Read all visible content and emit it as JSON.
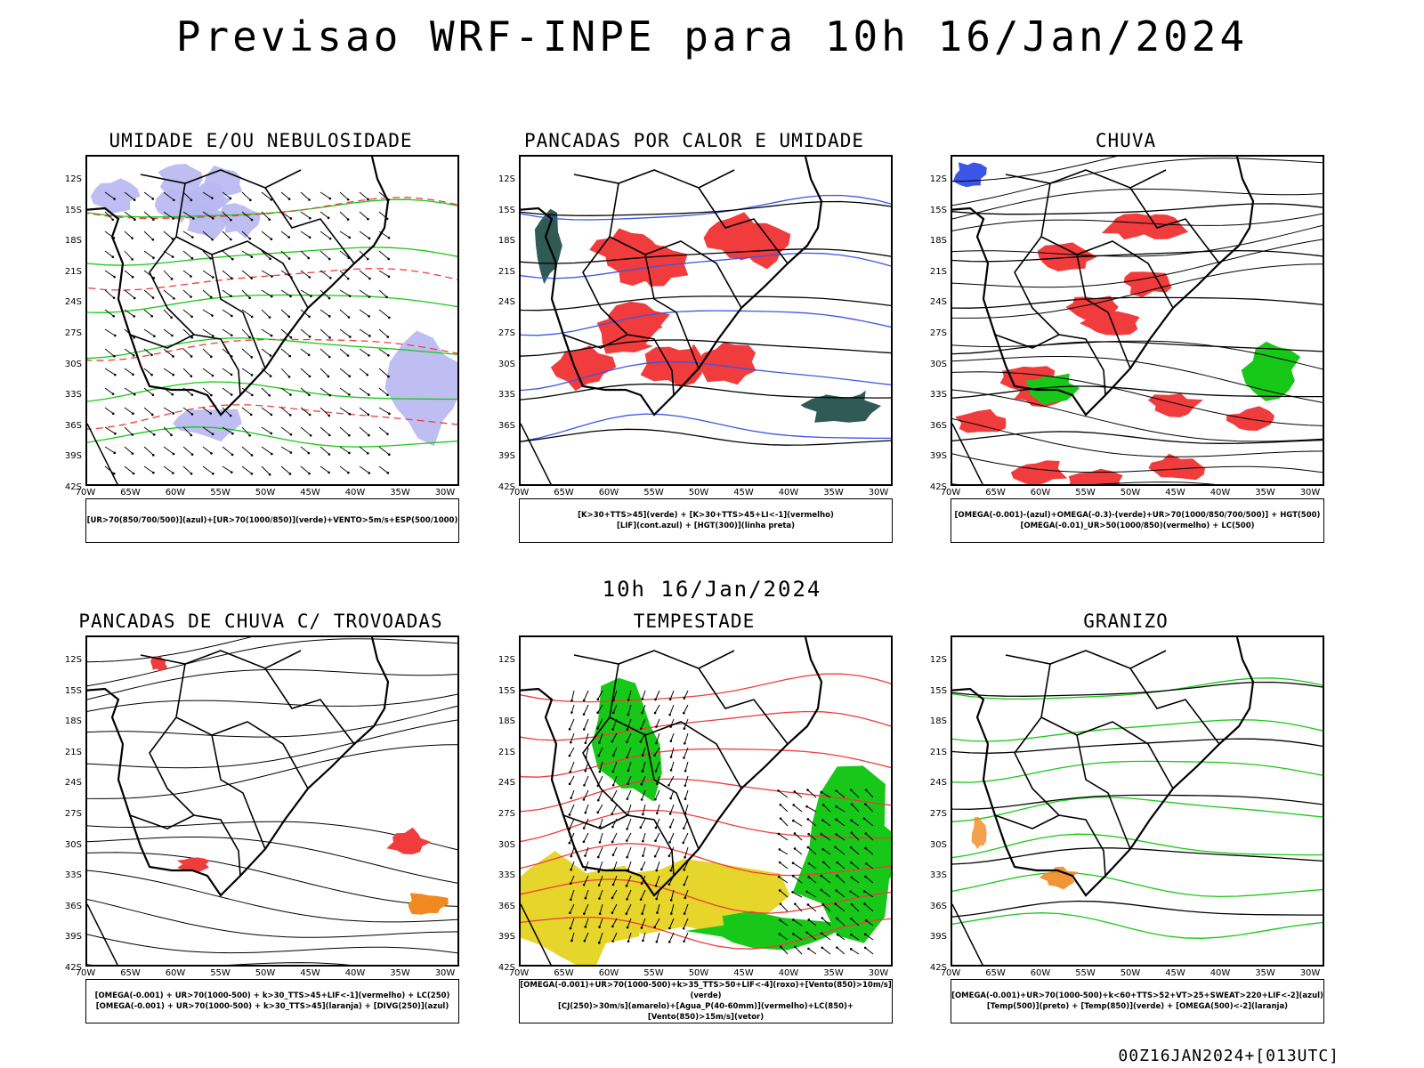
{
  "header": {
    "title": "Previsao WRF-INPE  para 10h 16/Jan/2024"
  },
  "middle_label": "10h 16/Jan/2024",
  "footer_label": "00Z16JAN2024+[013UTC]",
  "axes": {
    "lat_labels": [
      "12S",
      "15S",
      "18S",
      "21S",
      "24S",
      "27S",
      "30S",
      "33S",
      "36S",
      "39S",
      "42S"
    ],
    "lon_labels": [
      "70W",
      "65W",
      "60W",
      "55W",
      "50W",
      "45W",
      "40W",
      "35W",
      "30W"
    ]
  },
  "panels": [
    {
      "title": "UMIDADE E/OU NEBULOSIDADE",
      "legend": [
        "[UR>70(850/700/500)](azul)+[UR>70(1000/850)](verde)+VENTO>5m/s+ESP(500/1000)"
      ]
    },
    {
      "title": "PANCADAS POR CALOR E UMIDADE",
      "legend": [
        "[K>30+TTS>45](verde) + [K>30+TTS>45+LI<-1](vermelho)",
        "[LIF](cont.azul) + [HGT(300)](linha preta)"
      ]
    },
    {
      "title": "CHUVA",
      "legend": [
        "[OMEGA(-0.001)-(azul)+OMEGA(-0.3)-(verde)+UR>70(1000/850/700/500)] + HGT(500)",
        "[OMEGA(-0.01)_UR>50(1000/850)(vermelho) + LC(500)"
      ]
    },
    {
      "title": "PANCADAS DE CHUVA C/ TROVOADAS",
      "legend": [
        "[OMEGA(-0.001) + UR>70(1000-500) + k>30_TTS>45+LIF<-1](vermelho) + LC(250)",
        "[OMEGA(-0.001) + UR>70(1000-500) + k>30_TTS>45](laranja) + [DIVG(250)](azul)"
      ]
    },
    {
      "title": "TEMPESTADE",
      "legend": [
        "[OMEGA(-0.001)+UR>70(1000-500)+k>35_TTS>50+LIF<-4](roxo)+[Vento(850)>10m/s](verde)",
        "[CJ(250)>30m/s](amarelo)+[Agua_P(40-60mm)](vermelho)+LC(850)+[Vento(850)>15m/s](vetor)"
      ]
    },
    {
      "title": "GRANIZO",
      "legend": [
        "[OMEGA(-0.001)+UR>70(1000-500)+k<60+TTS>52+VT>25+SWEAT>220+LIF<-2](azul)",
        "[Temp(500)](preto) + [Temp(850)](verde) + [OMEGA(500)<-2](laranja)"
      ]
    }
  ],
  "colors": {
    "blue": "#3b55e6",
    "lightblue": "#b7b7f2",
    "green": "#18c818",
    "red": "#f03c3c",
    "darkteal": "#2f5a55",
    "yellow": "#e6d52a",
    "orange": "#f08a20",
    "purple": "#8a2be2"
  }
}
